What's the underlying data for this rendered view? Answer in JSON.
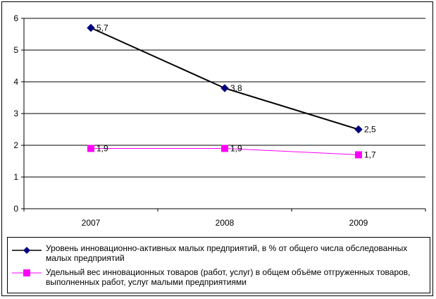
{
  "chart_data": {
    "type": "line",
    "categories": [
      "2007",
      "2008",
      "2009"
    ],
    "ylim": [
      0,
      6
    ],
    "yticks": [
      "0",
      "1",
      "2",
      "3",
      "4",
      "5",
      "6"
    ],
    "grid": true,
    "legend_position": "bottom",
    "series": [
      {
        "name": "Уровень инновационно-активных малых предприятий, в % от общего числа обследованных малых предприятий",
        "values": [
          5.7,
          3.8,
          2.5
        ],
        "labels": [
          "5,7",
          "3,8",
          "2,5"
        ],
        "color": "#000000",
        "marker_color": "#000080",
        "marker": "diamond"
      },
      {
        "name": "Удельный вес инновационных товаров (работ, услуг) в общем объёме отгруженных товаров, выполненных работ, услуг малыми предприятиями",
        "values": [
          1.9,
          1.9,
          1.7
        ],
        "labels": [
          "1,9",
          "1,9",
          "1,7"
        ],
        "color": "#FF00FF",
        "marker_color": "#FF00FF",
        "marker": "square"
      }
    ]
  }
}
